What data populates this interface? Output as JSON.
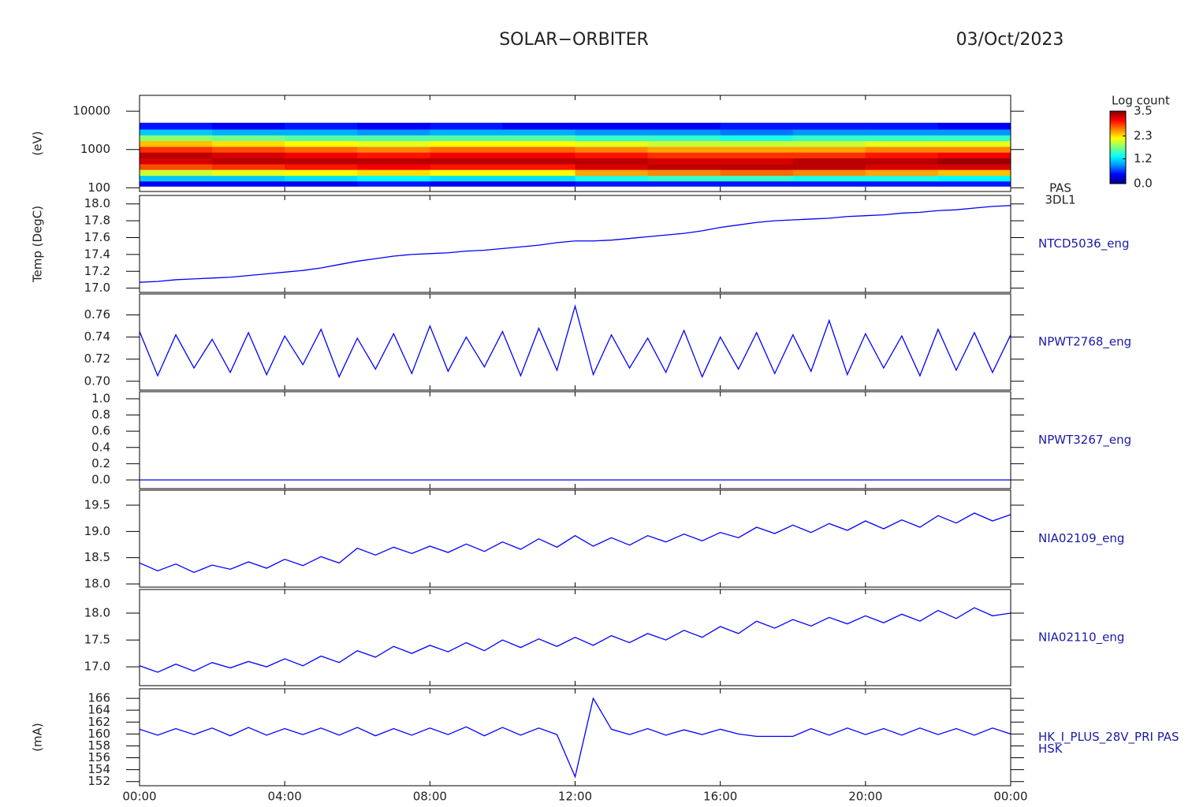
{
  "title": "SOLAR−ORBITER",
  "date": "03/Oct/2023",
  "time": {
    "xlim": [
      0,
      24
    ],
    "xticks": [
      {
        "value": 0,
        "label": "00:00"
      },
      {
        "value": 4,
        "label": "04:00"
      },
      {
        "value": 8,
        "label": "08:00"
      },
      {
        "value": 12,
        "label": "12:00"
      },
      {
        "value": 16,
        "label": "16:00"
      },
      {
        "value": 20,
        "label": "20:00"
      },
      {
        "value": 24,
        "label": "00:00"
      }
    ],
    "x": [
      0,
      0.5,
      1,
      1.5,
      2,
      2.5,
      3,
      3.5,
      4,
      4.5,
      5,
      5.5,
      6,
      6.5,
      7,
      7.5,
      8,
      8.5,
      9,
      9.5,
      10,
      10.5,
      11,
      11.5,
      12,
      12.5,
      13,
      13.5,
      14,
      14.5,
      15,
      15.5,
      16,
      16.5,
      17,
      17.5,
      18,
      18.5,
      19,
      19.5,
      20,
      20.5,
      21,
      21.5,
      22,
      22.5,
      23,
      23.5,
      24
    ]
  },
  "chart_data": [
    {
      "type": "heatmap",
      "label": [
        "PAS",
        "3DL1"
      ],
      "ylabel": "(eV)",
      "log": true,
      "ylim": [
        80,
        26000
      ],
      "yticks": [
        100,
        1000,
        10000
      ],
      "time_bins": [
        0,
        2,
        4,
        6,
        8,
        10,
        12,
        14,
        16,
        18,
        20,
        22,
        24
      ],
      "energy_bins": [
        110,
        150,
        210,
        300,
        420,
        600,
        850,
        1200,
        1700,
        2400,
        3400,
        5000
      ],
      "values": [
        [
          0.4,
          1.1,
          2.0,
          2.8,
          3.2,
          3.3,
          2.9,
          2.4,
          1.8,
          1.1,
          0.5
        ],
        [
          0.4,
          1.1,
          2.1,
          2.9,
          3.3,
          3.2,
          2.8,
          2.3,
          1.7,
          1.0,
          0.4
        ],
        [
          0.4,
          1.2,
          2.2,
          3.0,
          3.3,
          3.1,
          2.7,
          2.2,
          1.6,
          1.0,
          0.5
        ],
        [
          0.5,
          1.3,
          2.3,
          3.1,
          3.3,
          3.0,
          2.6,
          2.1,
          1.6,
          0.9,
          0.4
        ],
        [
          0.4,
          1.2,
          2.2,
          3.0,
          3.3,
          3.1,
          2.7,
          2.2,
          1.6,
          1.0,
          0.5
        ],
        [
          0.4,
          1.2,
          2.2,
          3.0,
          3.3,
          3.1,
          2.7,
          2.2,
          1.6,
          1.0,
          0.4
        ],
        [
          0.5,
          1.4,
          2.5,
          3.2,
          3.3,
          3.0,
          2.6,
          2.1,
          1.5,
          0.9,
          0.4
        ],
        [
          0.5,
          1.5,
          2.6,
          3.3,
          3.2,
          2.9,
          2.5,
          2.0,
          1.5,
          0.9,
          0.4
        ],
        [
          0.5,
          1.5,
          2.7,
          3.3,
          3.2,
          2.9,
          2.5,
          2.0,
          1.4,
          0.8,
          0.5
        ],
        [
          0.5,
          1.4,
          2.6,
          3.3,
          3.3,
          2.9,
          2.5,
          2.0,
          1.5,
          0.9,
          0.5
        ],
        [
          0.5,
          1.4,
          2.5,
          3.2,
          3.3,
          3.0,
          2.6,
          2.1,
          1.5,
          0.9,
          0.5
        ],
        [
          0.5,
          1.3,
          2.4,
          3.2,
          3.4,
          3.1,
          2.6,
          2.1,
          1.5,
          0.9,
          0.4
        ]
      ],
      "colorbar": {
        "title": "Log count",
        "clim": [
          0,
          3.5
        ],
        "ticks": [
          3.5,
          2.3,
          1.2,
          {
            "value": 0,
            "label": "0.0"
          }
        ],
        "colormap": [
          "#000080",
          "#0000ff",
          "#0090ff",
          "#00ffff",
          "#80ff80",
          "#ffff00",
          "#ff8000",
          "#ff0000",
          "#800000"
        ]
      }
    },
    {
      "type": "line",
      "label": [
        "NTCD5036_eng"
      ],
      "ylabel": "Temp (DegC)",
      "color": "#0000ff",
      "ylim": [
        16.95,
        18.1
      ],
      "yticks": [
        {
          "value": 17,
          "label": "17.0"
        },
        17.2,
        17.4,
        17.6,
        17.8,
        {
          "value": 18,
          "label": "18.0"
        }
      ],
      "values": [
        17.07,
        17.08,
        17.1,
        17.11,
        17.12,
        17.13,
        17.15,
        17.17,
        17.19,
        17.21,
        17.24,
        17.28,
        17.32,
        17.35,
        17.38,
        17.4,
        17.41,
        17.42,
        17.44,
        17.45,
        17.47,
        17.49,
        17.51,
        17.54,
        17.56,
        17.56,
        17.57,
        17.59,
        17.61,
        17.63,
        17.65,
        17.68,
        17.72,
        17.75,
        17.78,
        17.8,
        17.81,
        17.82,
        17.83,
        17.85,
        17.86,
        17.87,
        17.89,
        17.9,
        17.92,
        17.93,
        17.95,
        17.97,
        17.98
      ]
    },
    {
      "type": "line",
      "label": [
        "NPWT2768_eng"
      ],
      "color": "#0000ff",
      "ylim": [
        0.692,
        0.779
      ],
      "yticks": [
        {
          "value": 0.7,
          "label": "0.70"
        },
        0.72,
        0.74,
        0.76
      ],
      "values": [
        0.745,
        0.705,
        0.742,
        0.712,
        0.738,
        0.708,
        0.744,
        0.706,
        0.741,
        0.715,
        0.747,
        0.704,
        0.739,
        0.711,
        0.743,
        0.707,
        0.75,
        0.709,
        0.74,
        0.713,
        0.745,
        0.705,
        0.748,
        0.71,
        0.768,
        0.706,
        0.742,
        0.712,
        0.739,
        0.708,
        0.746,
        0.704,
        0.74,
        0.711,
        0.744,
        0.707,
        0.742,
        0.709,
        0.755,
        0.706,
        0.743,
        0.712,
        0.741,
        0.705,
        0.747,
        0.71,
        0.744,
        0.708,
        0.742
      ]
    },
    {
      "type": "line",
      "label": [
        "NPWT3267_eng"
      ],
      "color": "#0000ff",
      "ylim": [
        -0.107,
        1.087
      ],
      "yticks": [
        {
          "value": 0,
          "label": "0.0"
        },
        0.2,
        0.4,
        0.6,
        0.8,
        {
          "value": 1,
          "label": "1.0"
        }
      ],
      "values": [
        0,
        0,
        0,
        0,
        0,
        0,
        0,
        0,
        0,
        0,
        0,
        0,
        0,
        0,
        0,
        0,
        0,
        0,
        0,
        0,
        0,
        0,
        0,
        0,
        0,
        0,
        0,
        0,
        0,
        0,
        0,
        0,
        0,
        0,
        0,
        0,
        0,
        0,
        0,
        0,
        0,
        0,
        0,
        0,
        0,
        0,
        0,
        0,
        0
      ]
    },
    {
      "type": "line",
      "label": [
        "NIA02109_eng"
      ],
      "color": "#0000ff",
      "ylim": [
        17.94,
        19.785
      ],
      "yticks": [
        {
          "value": 18,
          "label": "18.0"
        },
        18.5,
        {
          "value": 19,
          "label": "19.0"
        },
        19.5
      ],
      "values": [
        18.4,
        18.25,
        18.38,
        18.22,
        18.36,
        18.28,
        18.42,
        18.3,
        18.47,
        18.35,
        18.52,
        18.4,
        18.68,
        18.55,
        18.7,
        18.58,
        18.72,
        18.6,
        18.76,
        18.62,
        18.8,
        18.66,
        18.86,
        18.7,
        18.92,
        18.72,
        18.88,
        18.74,
        18.92,
        18.8,
        18.95,
        18.82,
        18.98,
        18.88,
        19.08,
        18.96,
        19.12,
        18.98,
        19.15,
        19.02,
        19.2,
        19.05,
        19.22,
        19.08,
        19.3,
        19.16,
        19.35,
        19.2,
        19.32
      ]
    },
    {
      "type": "line",
      "label": [
        "NIA02110_eng"
      ],
      "color": "#0000ff",
      "ylim": [
        16.65,
        18.44
      ],
      "yticks": [
        {
          "value": 17,
          "label": "17.0"
        },
        17.5,
        {
          "value": 18,
          "label": "18.0"
        }
      ],
      "values": [
        17.02,
        16.9,
        17.05,
        16.92,
        17.08,
        16.98,
        17.1,
        17.0,
        17.15,
        17.02,
        17.2,
        17.08,
        17.3,
        17.18,
        17.38,
        17.25,
        17.4,
        17.28,
        17.45,
        17.3,
        17.5,
        17.36,
        17.52,
        17.38,
        17.55,
        17.4,
        17.58,
        17.45,
        17.62,
        17.5,
        17.68,
        17.55,
        17.75,
        17.62,
        17.85,
        17.72,
        17.88,
        17.76,
        17.92,
        17.8,
        17.95,
        17.82,
        17.98,
        17.85,
        18.05,
        17.9,
        18.1,
        17.95,
        18.0
      ]
    },
    {
      "type": "line",
      "label": [
        "HK_I_PLUS_28V_PRI PAS",
        "HSK"
      ],
      "ylabel": "(mA)",
      "color": "#0000ff",
      "ylim": [
        151.3,
        167.6
      ],
      "yticks": [
        152,
        154,
        156,
        158,
        160,
        162,
        164,
        166
      ],
      "values": [
        160.8,
        159.8,
        160.9,
        159.9,
        161.0,
        159.7,
        161.1,
        159.8,
        160.9,
        159.9,
        161.0,
        159.8,
        161.1,
        159.7,
        160.9,
        159.8,
        161.0,
        159.9,
        161.2,
        159.7,
        161.1,
        159.8,
        161.0,
        159.9,
        152.8,
        166.0,
        160.8,
        159.9,
        160.9,
        159.8,
        160.7,
        159.9,
        160.8,
        160.0,
        159.6,
        159.6,
        159.6,
        160.9,
        159.8,
        161.0,
        159.9,
        160.9,
        159.8,
        161.0,
        159.9,
        160.9,
        159.8,
        161.0,
        160.0
      ]
    }
  ]
}
